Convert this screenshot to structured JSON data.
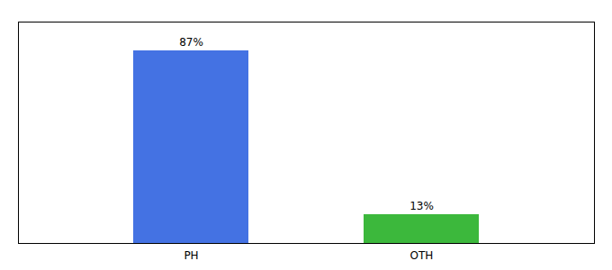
{
  "chart_data": {
    "type": "bar",
    "categories": [
      "PH",
      "OTH"
    ],
    "values": [
      87,
      13
    ],
    "value_labels": [
      "87%",
      "13%"
    ],
    "colors": [
      "#4472E3",
      "#3CB83C"
    ],
    "ylim": [
      0,
      100
    ],
    "data_labels": true,
    "tick_labels": "x"
  }
}
